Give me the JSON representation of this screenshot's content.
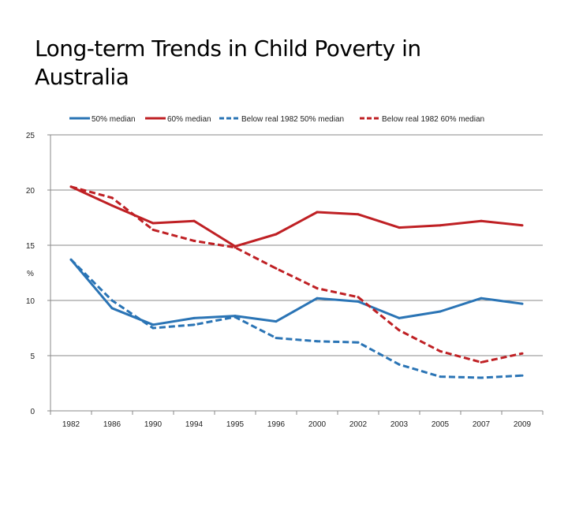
{
  "title_line1": "Long-term Trends in Child Poverty in",
  "title_line2": "Australia",
  "chart_data": {
    "type": "line",
    "title": "Long-term Trends in Child Poverty in Australia",
    "xlabel": "",
    "ylabel": "%",
    "ylim": [
      0,
      25
    ],
    "yticks": [
      "0",
      "5",
      "10",
      "15",
      "20",
      "25"
    ],
    "grid": "horizontal",
    "legend_position": "top",
    "categories": [
      "1982",
      "1986",
      "1990",
      "1994",
      "1995",
      "1996",
      "2000",
      "2002",
      "2003",
      "2005",
      "2007",
      "2009"
    ],
    "series": [
      {
        "name": "50% median",
        "color": "#2a74b5",
        "dash": "solid",
        "values": [
          13.7,
          9.3,
          7.8,
          8.4,
          8.6,
          8.1,
          10.2,
          9.9,
          8.4,
          9.0,
          10.2,
          9.7
        ]
      },
      {
        "name": "60% median",
        "color": "#bf2024",
        "dash": "solid",
        "values": [
          20.3,
          18.6,
          17.0,
          17.2,
          14.9,
          16.0,
          18.0,
          17.8,
          16.6,
          16.8,
          17.2,
          16.8
        ]
      },
      {
        "name": "Below real 1982 50% median",
        "color": "#2a74b5",
        "dash": "dashed",
        "values": [
          13.7,
          10.0,
          7.5,
          7.8,
          8.5,
          6.6,
          6.3,
          6.2,
          4.2,
          3.1,
          3.0,
          3.2
        ]
      },
      {
        "name": "Below real 1982 60% median",
        "color": "#bf2024",
        "dash": "dashed",
        "values": [
          20.3,
          19.3,
          16.4,
          15.4,
          14.8,
          12.9,
          11.1,
          10.3,
          7.3,
          5.4,
          4.4,
          5.2
        ]
      }
    ]
  }
}
